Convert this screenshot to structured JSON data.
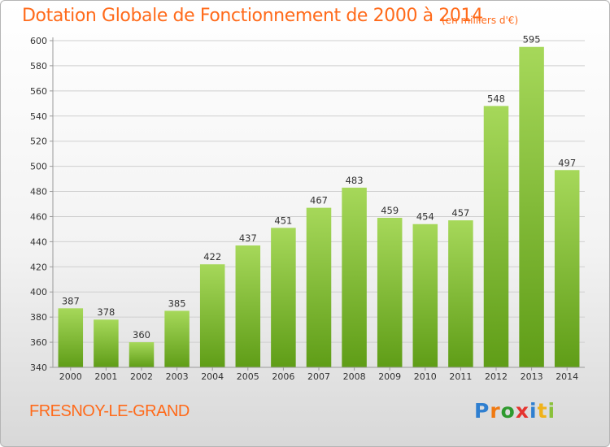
{
  "title": "Dotation Globale de Fonctionnement de 2000 à 2014",
  "unit": "(en milliers d'€)",
  "commune": "FRESNOY-LE-GRAND",
  "logo": {
    "text": "Proxiti",
    "letters": [
      {
        "char": "P",
        "color": "#2f7fd0"
      },
      {
        "char": "r",
        "color": "#f07a12"
      },
      {
        "char": "o",
        "color": "#2f9a2f"
      },
      {
        "char": "x",
        "color": "#e5342f"
      },
      {
        "char": "i",
        "color": "#2f7fd0"
      },
      {
        "char": "t",
        "color": "#f0b21a"
      },
      {
        "char": "i",
        "color": "#8ac13b"
      }
    ]
  },
  "colors": {
    "accent": "#ff6a1a",
    "bar_light": "#a6d85a",
    "bar_dark": "#5f9d17",
    "grid": "#cfcfcf",
    "text": "#333333"
  },
  "chart_data": {
    "type": "bar",
    "title": "Dotation Globale de Fonctionnement de 2000 à 2014",
    "subtitle": "(en milliers d'€)",
    "xlabel": "",
    "ylabel": "",
    "categories": [
      "2000",
      "2001",
      "2002",
      "2003",
      "2004",
      "2005",
      "2006",
      "2007",
      "2008",
      "2009",
      "2010",
      "2011",
      "2012",
      "2013",
      "2014"
    ],
    "values": [
      387,
      378,
      360,
      385,
      422,
      437,
      451,
      467,
      483,
      459,
      454,
      457,
      548,
      595,
      497
    ],
    "ylim": [
      340,
      600
    ],
    "yticks": [
      340,
      360,
      380,
      400,
      420,
      440,
      460,
      480,
      500,
      520,
      540,
      560,
      580,
      600
    ],
    "grid": true,
    "data_labels": true
  }
}
